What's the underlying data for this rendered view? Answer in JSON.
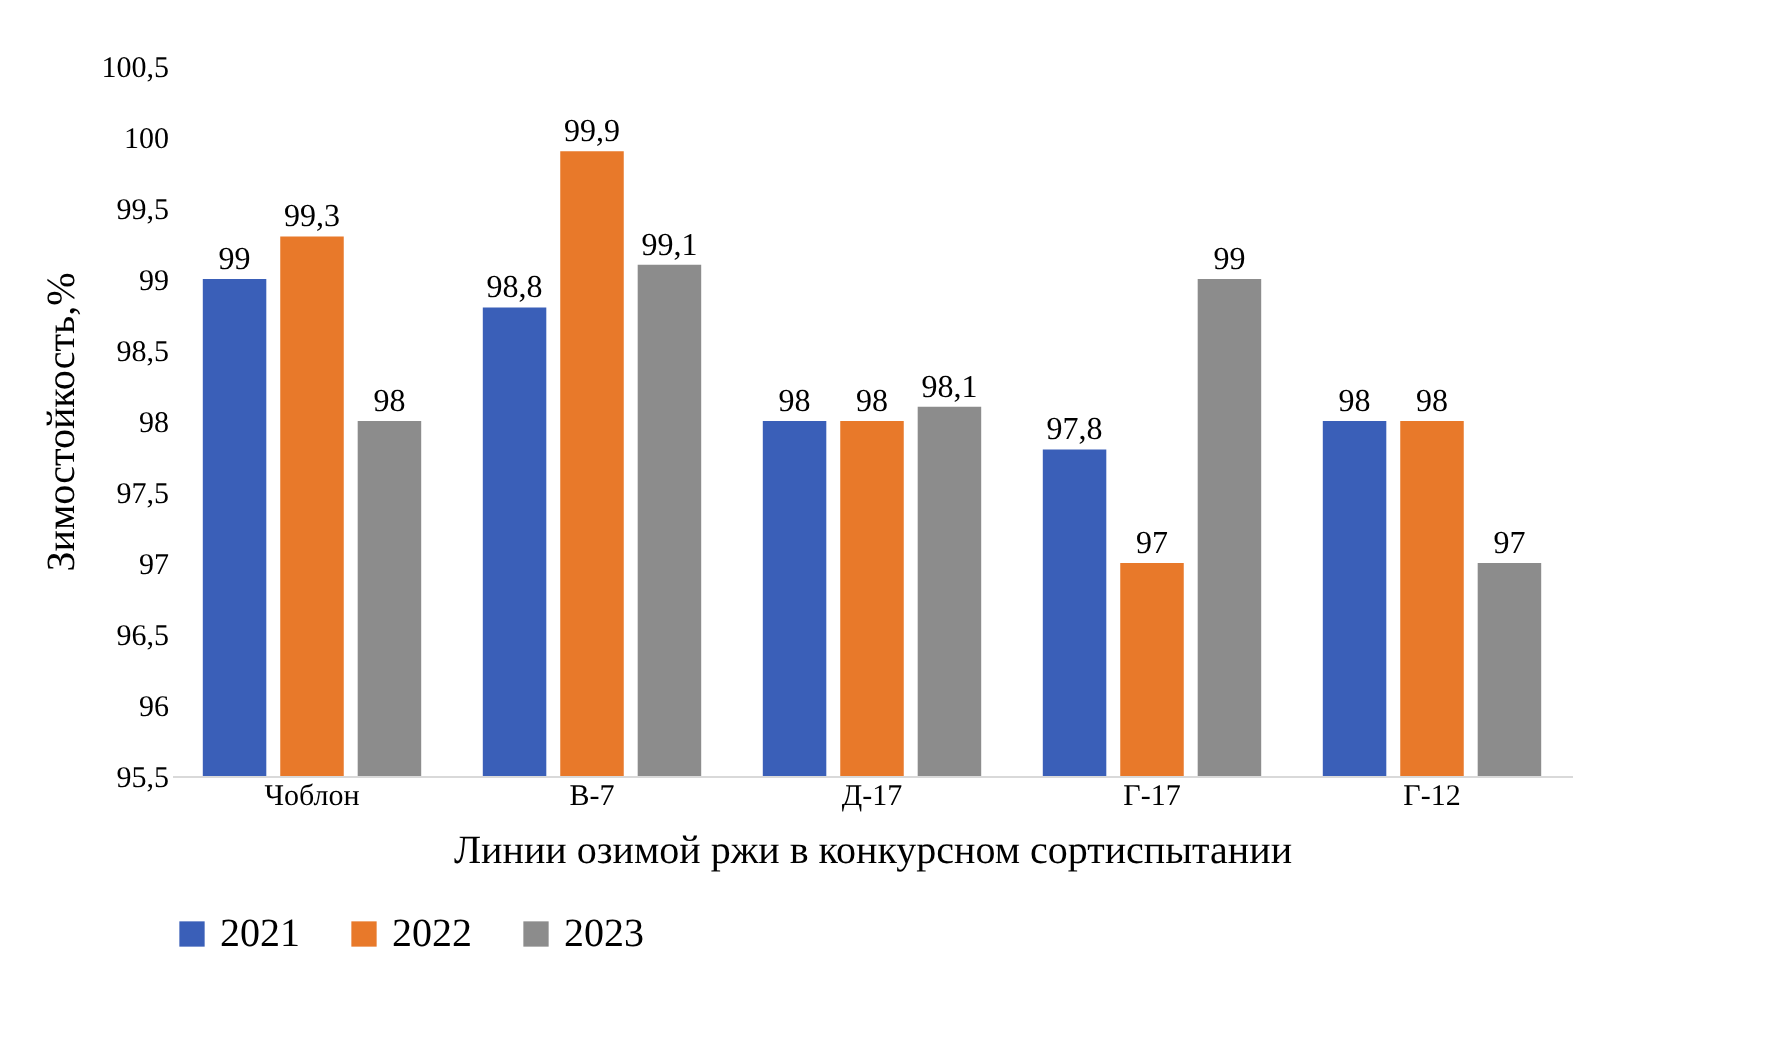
{
  "chart_data": {
    "type": "bar",
    "xlabel": "Линии озимой ржи в конкурсном сортиспытании",
    "ylabel": "Зимостойкость,%",
    "categories": [
      "Чоблон",
      "В-7",
      "Д-17",
      "Г-17",
      "Г-12"
    ],
    "series": [
      {
        "name": "2021",
        "color": "#3a5fb8",
        "values": [
          99,
          98.8,
          98,
          97.8,
          98
        ],
        "value_labels": [
          "99",
          "98,8",
          "98",
          "97,8",
          "98"
        ]
      },
      {
        "name": "2022",
        "color": "#e8792a",
        "values": [
          99.3,
          99.9,
          98,
          97,
          98
        ],
        "value_labels": [
          "99,3",
          "99,9",
          "98",
          "97",
          "98"
        ]
      },
      {
        "name": "2023",
        "color": "#8c8c8c",
        "values": [
          98,
          99.1,
          98.1,
          99,
          97
        ],
        "value_labels": [
          "98",
          "99,1",
          "98,1",
          "99",
          "97"
        ]
      }
    ],
    "ylim": [
      95.5,
      100.5
    ],
    "yticks": [
      {
        "value": 95.5,
        "label": "95,5"
      },
      96,
      {
        "value": 96.5,
        "label": "96,5"
      },
      97,
      {
        "value": 97.5,
        "label": "97,5"
      },
      98,
      {
        "value": 98.5,
        "label": "98,5"
      },
      99,
      {
        "value": 99.5,
        "label": "99,5"
      },
      100,
      {
        "value": 100.5,
        "label": "100,5"
      }
    ],
    "grid": false,
    "legend": "bottom"
  }
}
